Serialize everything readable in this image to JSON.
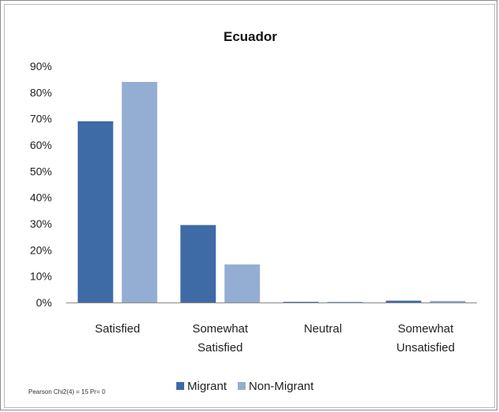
{
  "chart_data": {
    "type": "bar",
    "title": "Ecuador",
    "categories": [
      [
        "Satisfied"
      ],
      [
        "Somewhat",
        "Satisfied"
      ],
      [
        "Neutral"
      ],
      [
        "Somewhat",
        "Unsatisfied"
      ]
    ],
    "series": [
      {
        "name": "Migrant",
        "color": "#3e6aa6",
        "values": [
          69,
          29.5,
          0,
          0.7
        ]
      },
      {
        "name": "Non-Migrant",
        "color": "#94add2",
        "values": [
          84,
          14.5,
          0.3,
          0.6
        ]
      }
    ],
    "ylim": [
      0,
      90
    ],
    "yticks": [
      0,
      10,
      20,
      30,
      40,
      50,
      60,
      70,
      80,
      90
    ],
    "ytick_labels": [
      "0%",
      "10%",
      "20%",
      "30%",
      "40%",
      "50%",
      "60%",
      "70%",
      "80%",
      "90%"
    ],
    "grid": false,
    "legend": "bottom",
    "annotation": "Pearson Chi2(4) = 15 Pr= 0"
  }
}
